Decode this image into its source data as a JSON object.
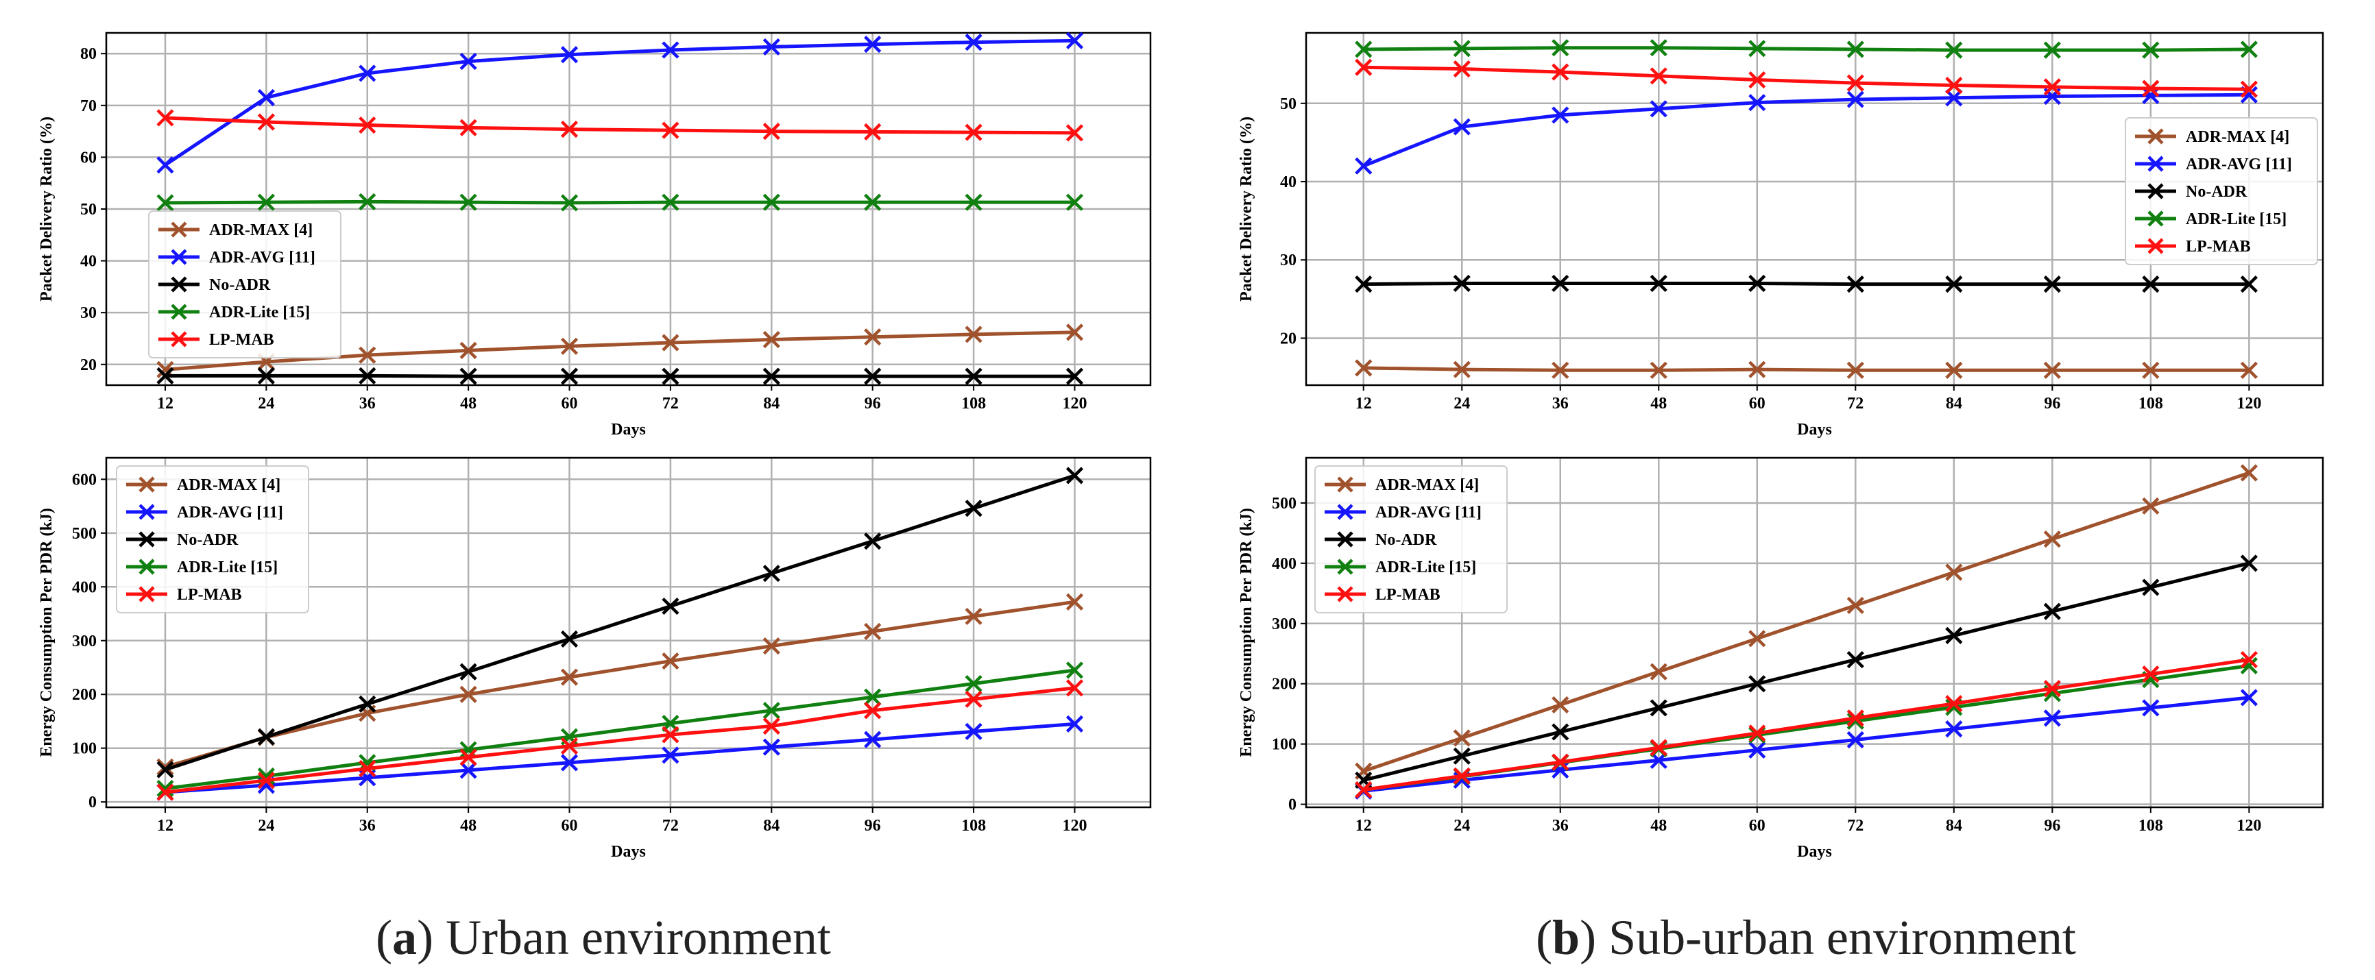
{
  "colors": {
    "ADR-MAX": "#a0522d",
    "ADR-AVG": "#1515ff",
    "No-ADR": "#000000",
    "ADR-Lite": "#108010",
    "LP-MAB": "#ff1010",
    "grid": "#b0b0b0"
  },
  "captions": {
    "a": {
      "label": "a",
      "text": " Urban environment"
    },
    "b": {
      "label": "b",
      "text": " Sub-urban environment"
    }
  },
  "chart_data": [
    {
      "id": "urban-pdr",
      "type": "line",
      "xlabel": "Days",
      "ylabel": "Packet Delivery Ratio (%)",
      "x": [
        12,
        24,
        36,
        48,
        60,
        72,
        84,
        96,
        108,
        120
      ],
      "xlim": [
        5,
        129
      ],
      "ylim": [
        16,
        84
      ],
      "yticks": [
        20,
        30,
        40,
        50,
        60,
        70,
        80
      ],
      "legend_position": "center-left",
      "grid": true,
      "series": [
        {
          "name": "ADR-MAX  [4]",
          "key": "ADR-MAX",
          "values": [
            19,
            20.5,
            21.8,
            22.7,
            23.5,
            24.2,
            24.8,
            25.3,
            25.8,
            26.2
          ]
        },
        {
          "name": "ADR-AVG [11]",
          "key": "ADR-AVG",
          "values": [
            58.5,
            71.5,
            76.2,
            78.5,
            79.8,
            80.7,
            81.3,
            81.8,
            82.2,
            82.5
          ]
        },
        {
          "name": "No-ADR",
          "key": "No-ADR",
          "values": [
            17.8,
            17.8,
            17.8,
            17.7,
            17.7,
            17.7,
            17.7,
            17.7,
            17.7,
            17.7
          ]
        },
        {
          "name": "ADR-Lite [15]",
          "key": "ADR-Lite",
          "values": [
            51.2,
            51.3,
            51.4,
            51.3,
            51.2,
            51.3,
            51.3,
            51.3,
            51.3,
            51.3
          ]
        },
        {
          "name": "LP-MAB",
          "key": "LP-MAB",
          "values": [
            67.6,
            66.8,
            66.2,
            65.7,
            65.4,
            65.2,
            65.0,
            64.9,
            64.8,
            64.7
          ]
        }
      ]
    },
    {
      "id": "suburban-pdr",
      "type": "line",
      "xlabel": "Days",
      "ylabel": "Packet Delivery Ratio (%)",
      "x": [
        12,
        24,
        36,
        48,
        60,
        72,
        84,
        96,
        108,
        120
      ],
      "xlim": [
        5,
        129
      ],
      "ylim": [
        14,
        59
      ],
      "yticks": [
        20,
        30,
        40,
        50
      ],
      "legend_position": "center-right",
      "grid": true,
      "series": [
        {
          "name": "ADR-MAX  [4]",
          "key": "ADR-MAX",
          "values": [
            16.2,
            16.0,
            15.9,
            15.9,
            16.0,
            15.9,
            15.9,
            15.9,
            15.9,
            15.9
          ]
        },
        {
          "name": "ADR-AVG [11]",
          "key": "ADR-AVG",
          "values": [
            42.0,
            47.0,
            48.5,
            49.3,
            50.1,
            50.5,
            50.7,
            50.9,
            51.0,
            51.1
          ]
        },
        {
          "name": "No-ADR",
          "key": "No-ADR",
          "values": [
            26.9,
            27.0,
            27.0,
            27.0,
            27.0,
            26.9,
            26.9,
            26.9,
            26.9,
            26.9
          ]
        },
        {
          "name": "ADR-Lite [15]",
          "key": "ADR-Lite",
          "values": [
            56.9,
            57.0,
            57.1,
            57.1,
            57.0,
            56.9,
            56.8,
            56.8,
            56.8,
            56.9
          ]
        },
        {
          "name": "LP-MAB",
          "key": "LP-MAB",
          "values": [
            54.6,
            54.4,
            54.0,
            53.5,
            53.0,
            52.6,
            52.3,
            52.1,
            51.9,
            51.8
          ]
        }
      ]
    },
    {
      "id": "urban-energy",
      "type": "line",
      "xlabel": "Days",
      "ylabel": "Energy Consumption Per PDR (kJ)",
      "x": [
        12,
        24,
        36,
        48,
        60,
        72,
        84,
        96,
        108,
        120
      ],
      "xlim": [
        5,
        129
      ],
      "ylim": [
        -10,
        640
      ],
      "yticks": [
        0,
        100,
        200,
        300,
        400,
        500,
        600
      ],
      "legend_position": "upper-left",
      "grid": true,
      "series": [
        {
          "name": "ADR-MAX  [4]",
          "key": "ADR-MAX",
          "values": [
            65,
            120,
            165,
            200,
            232,
            262,
            290,
            317,
            345,
            372
          ]
        },
        {
          "name": "ADR-AVG [11]",
          "key": "ADR-AVG",
          "values": [
            18,
            31,
            45,
            59,
            73,
            87,
            102,
            116,
            131,
            145
          ]
        },
        {
          "name": "No-ADR",
          "key": "No-ADR",
          "values": [
            60,
            121,
            182,
            242,
            303,
            364,
            425,
            485,
            546,
            607
          ]
        },
        {
          "name": "ADR-Lite [15]",
          "key": "ADR-Lite",
          "values": [
            25,
            48,
            73,
            97,
            121,
            146,
            170,
            195,
            220,
            245
          ]
        },
        {
          "name": "LP-MAB",
          "key": "LP-MAB",
          "values": [
            18,
            40,
            62,
            83,
            104,
            125,
            141,
            170,
            191,
            212
          ]
        }
      ]
    },
    {
      "id": "suburban-energy",
      "type": "line",
      "xlabel": "Days",
      "ylabel": "Energy Consumption Per PDR (kJ)",
      "x": [
        12,
        24,
        36,
        48,
        60,
        72,
        84,
        96,
        108,
        120
      ],
      "xlim": [
        5,
        129
      ],
      "ylim": [
        -5,
        575
      ],
      "yticks": [
        0,
        100,
        200,
        300,
        400,
        500
      ],
      "legend_position": "upper-left",
      "grid": true,
      "series": [
        {
          "name": "ADR-MAX  [4]",
          "key": "ADR-MAX",
          "values": [
            55,
            110,
            165,
            220,
            275,
            330,
            385,
            440,
            495,
            550
          ]
        },
        {
          "name": "ADR-AVG [11]",
          "key": "ADR-AVG",
          "values": [
            22,
            40,
            57,
            73,
            90,
            107,
            125,
            143,
            160,
            177
          ]
        },
        {
          "name": "No-ADR",
          "key": "No-ADR",
          "values": [
            40,
            80,
            120,
            160,
            200,
            240,
            280,
            320,
            360,
            400
          ]
        },
        {
          "name": "ADR-Lite [15]",
          "key": "ADR-Lite",
          "values": [
            24,
            46,
            69,
            92,
            115,
            138,
            161,
            184,
            207,
            230
          ]
        },
        {
          "name": "LP-MAB",
          "key": "LP-MAB",
          "values": [
            24,
            47,
            70,
            94,
            118,
            143,
            167,
            192,
            216,
            240
          ]
        }
      ]
    }
  ]
}
